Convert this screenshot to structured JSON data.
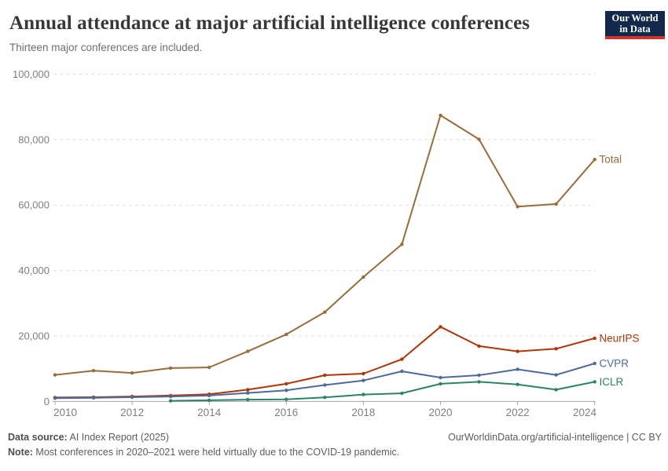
{
  "header": {
    "title": "Annual attendance at major artificial intelligence conferences",
    "subtitle": "Thirteen major conferences are included."
  },
  "logo": {
    "line1": "Our World",
    "line2": "in Data"
  },
  "chart_data": {
    "type": "line",
    "title": "Annual attendance at major artificial intelligence conferences",
    "x": [
      2010,
      2011,
      2012,
      2013,
      2014,
      2015,
      2016,
      2017,
      2018,
      2019,
      2020,
      2021,
      2022,
      2023,
      2024
    ],
    "x_ticks": [
      2010,
      2012,
      2014,
      2016,
      2018,
      2020,
      2022,
      2024
    ],
    "y_ticks": [
      0,
      20000,
      40000,
      60000,
      80000,
      100000
    ],
    "ylim": [
      0,
      100000
    ],
    "grid": "horizontal-dashed",
    "legend_position": "end-of-line-labels",
    "series": [
      {
        "name": "Total",
        "color": "#996D39",
        "values": [
          8100,
          9400,
          8700,
          10200,
          10400,
          15300,
          20500,
          27300,
          38000,
          48000,
          87400,
          80100,
          59500,
          60300,
          73900
        ]
      },
      {
        "name": "NeurIPS",
        "color": "#B13507",
        "values": [
          1200,
          1300,
          1500,
          1800,
          2200,
          3600,
          5400,
          8000,
          8500,
          12900,
          22800,
          16900,
          15300,
          16100,
          19300
        ]
      },
      {
        "name": "CVPR",
        "color": "#4C6A9C",
        "values": [
          1000,
          1100,
          1300,
          1500,
          1800,
          2600,
          3400,
          5000,
          6400,
          9200,
          7300,
          8000,
          9800,
          8100,
          11600
        ]
      },
      {
        "name": "ICLR",
        "color": "#2C8465",
        "values": [
          null,
          null,
          null,
          200,
          350,
          550,
          650,
          1250,
          2100,
          2500,
          5400,
          6000,
          5200,
          3600,
          6000
        ]
      }
    ]
  },
  "footer": {
    "source_label": "Data source:",
    "source_value": " AI Index Report (2025)",
    "note_label": "Note:",
    "note_value": " Most conferences in 2020–2021 were held virtually due to the COVID-19 pandemic.",
    "attribution": "OurWorldinData.org/artificial-intelligence | CC BY"
  },
  "colors": {
    "grid": "#DDDDDD",
    "axis": "#A5A5A5",
    "tick_text": "#7E7E7E",
    "title_text": "#383838",
    "logo_bg": "#12294B",
    "logo_accent": "#D0342C"
  }
}
